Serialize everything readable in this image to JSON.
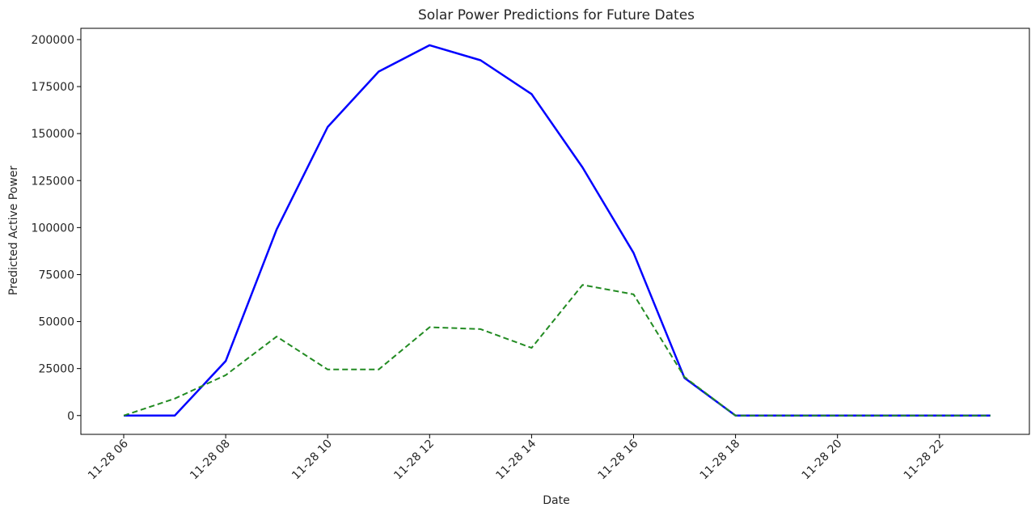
{
  "chart_data": {
    "type": "line",
    "title": "Solar Power Predictions for Future Dates",
    "xlabel": "Date",
    "ylabel": "Predicted Active Power",
    "x": [
      "11-28 06",
      "11-28 07",
      "11-28 08",
      "11-28 09",
      "11-28 10",
      "11-28 11",
      "11-28 12",
      "11-28 13",
      "11-28 14",
      "11-28 15",
      "11-28 16",
      "11-28 17",
      "11-28 18",
      "11-28 19",
      "11-28 20",
      "11-28 21",
      "11-28 22",
      "11-28 23"
    ],
    "xticks": [
      "11-28 06",
      "11-28 08",
      "11-28 10",
      "11-28 12",
      "11-28 14",
      "11-28 16",
      "11-28 18",
      "11-28 20",
      "11-28 22"
    ],
    "yticks": [
      "0",
      "25000",
      "50000",
      "75000",
      "100000",
      "125000",
      "150000",
      "175000",
      "200000"
    ],
    "ylim": [
      -10000,
      206000
    ],
    "grid": false,
    "legend": "none",
    "series": [
      {
        "color": "#0000ff",
        "style": "solid",
        "values": [
          0,
          0,
          29000,
          99000,
          153500,
          183000,
          197000,
          189000,
          171000,
          132000,
          86500,
          20000,
          0,
          0,
          0,
          0,
          0,
          0
        ]
      },
      {
        "color": "#228b22",
        "style": "dashed",
        "values": [
          0,
          9000,
          21500,
          42000,
          24500,
          24500,
          47000,
          46000,
          36000,
          69500,
          64500,
          20500,
          0,
          0,
          0,
          0,
          0,
          0
        ]
      }
    ]
  }
}
